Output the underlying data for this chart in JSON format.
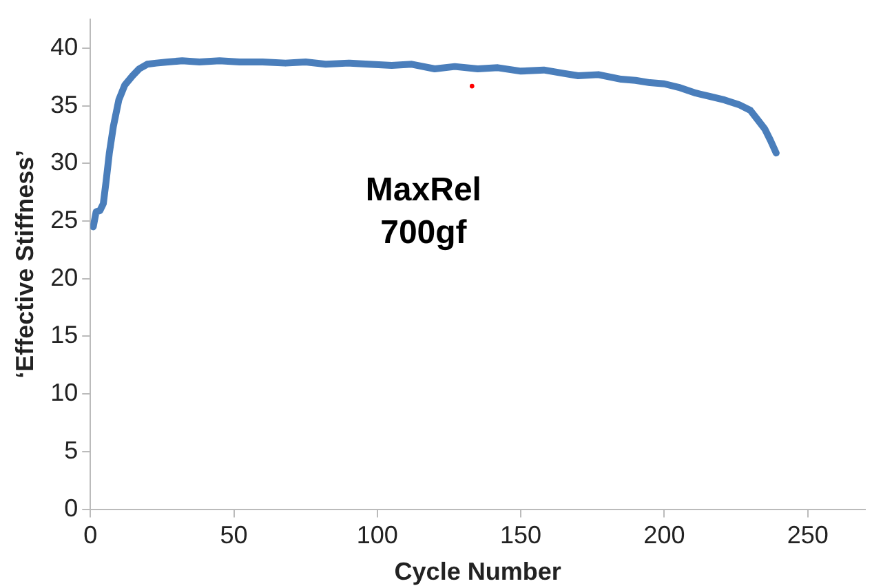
{
  "chart_data": {
    "type": "line",
    "xlabel": "Cycle Number",
    "ylabel": "‘Effective Stiffness’",
    "annotations": [
      "MaxRel",
      "700gf"
    ],
    "xlim": [
      0,
      270
    ],
    "xticks": [
      0,
      50,
      100,
      150,
      200,
      250
    ],
    "ylim": [
      0,
      42.5
    ],
    "yticks": [
      0,
      5,
      10,
      15,
      20,
      25,
      30,
      35,
      40
    ],
    "grid": false,
    "legend": false,
    "series": [
      {
        "color": "#4a7ebb",
        "x": [
          1,
          2,
          3.3,
          4.5,
          5.5,
          6.6,
          8,
          9.9,
          12,
          14.7,
          17,
          19.8,
          23,
          27,
          32,
          38,
          45,
          52,
          60,
          68,
          75,
          82,
          90,
          97,
          105,
          112,
          120,
          127,
          135,
          142,
          150,
          158,
          165,
          170,
          177,
          185,
          190,
          195,
          200,
          205,
          211,
          216,
          221,
          226,
          230,
          232.5,
          235,
          237,
          239
        ],
        "values": [
          24.5,
          25.8,
          25.9,
          26.5,
          28.5,
          30.9,
          33.2,
          35.5,
          36.8,
          37.6,
          38.2,
          38.6,
          38.7,
          38.8,
          38.9,
          38.8,
          38.9,
          38.8,
          38.8,
          38.7,
          38.8,
          38.6,
          38.7,
          38.6,
          38.5,
          38.6,
          38.2,
          38.4,
          38.2,
          38.3,
          38.0,
          38.1,
          37.8,
          37.6,
          37.7,
          37.3,
          37.2,
          37.0,
          36.9,
          36.6,
          36.1,
          35.8,
          35.5,
          35.1,
          34.6,
          33.8,
          33.0,
          32.0,
          30.9
        ]
      },
      {
        "type": "scatter",
        "color": "#ff0000",
        "x": [
          133
        ],
        "values": [
          36.7
        ]
      }
    ]
  }
}
